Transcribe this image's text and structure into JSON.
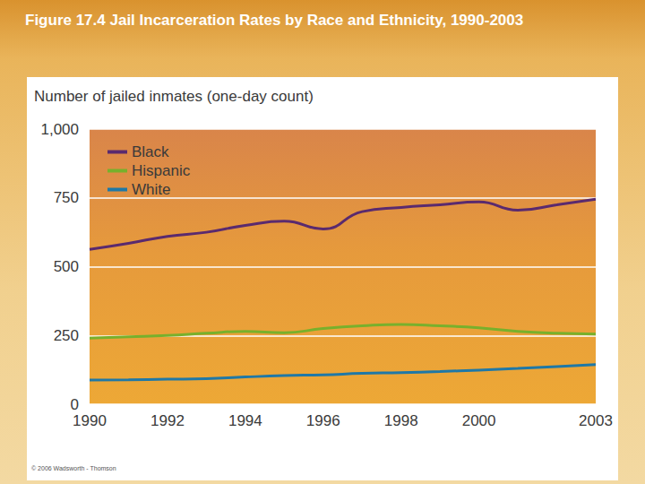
{
  "chart_data": {
    "type": "line",
    "title": "Figure 17.4 Jail Incarceration Rates by Race and Ethnicity, 1990-2003",
    "y_label": "Number of jailed inmates (one-day count)",
    "credit": "© 2006 Wadsworth - Thomson",
    "x": [
      1990,
      1991,
      1992,
      1993,
      1994,
      1995,
      1996,
      1997,
      1998,
      1999,
      2000,
      2001,
      2002,
      2003
    ],
    "xlim": [
      1990,
      2003
    ],
    "xticks": [
      1990,
      1992,
      1994,
      1996,
      1998,
      2000,
      2003
    ],
    "ylim": [
      0,
      1000
    ],
    "yticks": [
      0,
      250,
      500,
      750,
      {
        "value": 1000,
        "label": "1,000"
      }
    ],
    "grid": true,
    "legend": "upper left",
    "series": [
      {
        "name": "Black",
        "color": "#5a2a6e",
        "values": [
          563,
          585,
          610,
          625,
          650,
          665,
          637,
          700,
          715,
          725,
          735,
          705,
          725,
          745
        ]
      },
      {
        "name": "Hispanic",
        "color": "#78b02c",
        "values": [
          240,
          245,
          250,
          258,
          265,
          260,
          275,
          285,
          290,
          285,
          278,
          265,
          258,
          255
        ]
      },
      {
        "name": "White",
        "color": "#1f78a6",
        "values": [
          88,
          89,
          91,
          93,
          99,
          104,
          107,
          112,
          115,
          119,
          124,
          130,
          137,
          144
        ]
      }
    ]
  }
}
